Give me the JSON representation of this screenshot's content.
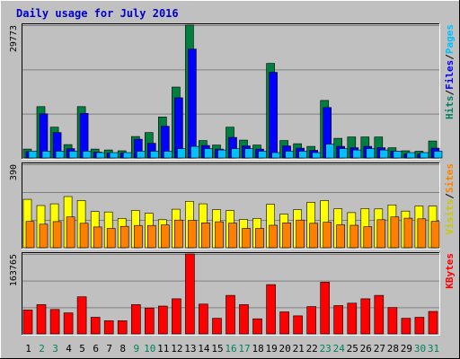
{
  "chart_data": {
    "type": "bar",
    "title": "Daily usage for July 2016",
    "categories": [
      "1",
      "2",
      "3",
      "4",
      "5",
      "6",
      "7",
      "8",
      "9",
      "10",
      "11",
      "12",
      "13",
      "14",
      "15",
      "16",
      "17",
      "18",
      "19",
      "20",
      "21",
      "22",
      "23",
      "24",
      "25",
      "26",
      "27",
      "28",
      "29",
      "30",
      "31"
    ],
    "weekend_days": [
      "2",
      "3",
      "9",
      "10",
      "16",
      "17",
      "23",
      "24",
      "30",
      "31"
    ],
    "colors": {
      "background": "#c0c0c0",
      "hits": "#008040",
      "files": "#0000ff",
      "pages": "#00c0ff",
      "visits": "#ffff00",
      "sites": "#ff8000",
      "kbytes": "#ff0000",
      "weekday_label": "#000000",
      "weekend_label": "#00805c",
      "title": "#0000c8"
    },
    "panels": [
      {
        "id": "hits_files_pages",
        "ymax_label": "29773",
        "ymax": 29773,
        "legend": [
          {
            "label": "Hits",
            "color": "#00805c"
          },
          {
            "label": "/",
            "color": "#000000"
          },
          {
            "label": "Files",
            "color": "#0000ff"
          },
          {
            "label": "/",
            "color": "#000000"
          },
          {
            "label": "Pages",
            "color": "#00c0ff"
          }
        ],
        "series": [
          {
            "name": "Hits",
            "color": "#008040",
            "values": [
              2000,
              11500,
              6900,
              3000,
              11500,
              2000,
              1800,
              1600,
              4800,
              5700,
              9200,
              15900,
              29773,
              3900,
              2900,
              6900,
              4000,
              2900,
              21200,
              3900,
              3200,
              2600,
              12900,
              4400,
              4700,
              4700,
              4700,
              2300,
              1600,
              1500,
              3800
            ]
          },
          {
            "name": "Files",
            "color": "#0000ff",
            "values": [
              1400,
              9900,
              5700,
              2100,
              10000,
              1300,
              1100,
              1100,
              4200,
              3300,
              7100,
              13500,
              24400,
              2800,
              2000,
              4600,
              2700,
              2000,
              19200,
              2700,
              2200,
              1700,
              11300,
              2600,
              2300,
              2600,
              2300,
              1500,
              900,
              900,
              2200
            ]
          },
          {
            "name": "Pages",
            "color": "#00c0ff",
            "values": [
              1500,
              1500,
              1500,
              1500,
              1500,
              1200,
              1200,
              1200,
              1500,
              1500,
              1500,
              2100,
              2600,
              2100,
              1800,
              2100,
              2100,
              1500,
              1200,
              1500,
              1500,
              1200,
              3100,
              2100,
              1800,
              2100,
              1800,
              1500,
              1200,
              1200,
              1500
            ]
          }
        ]
      },
      {
        "id": "visits_sites",
        "ymax_label": "390",
        "ymax": 390,
        "legend": [
          {
            "label": "Visits",
            "color": "#c8c800"
          },
          {
            "label": "/",
            "color": "#000000"
          },
          {
            "label": "Sites",
            "color": "#ff8000"
          }
        ],
        "series": [
          {
            "name": "Visits",
            "color": "#ffff00",
            "values": [
              226,
              197,
              205,
              239,
              221,
              169,
              167,
              137,
              174,
              161,
              131,
              180,
              217,
              205,
              178,
              173,
              132,
              137,
              203,
              157,
              178,
              212,
              220,
              182,
              164,
              183,
              181,
              200,
              171,
              195,
              194
            ]
          },
          {
            "name": "Sites",
            "color": "#ff8000",
            "values": [
              123,
              110,
              122,
              144,
              114,
              97,
              90,
              100,
              104,
              104,
              106,
              129,
              128,
              116,
              121,
              115,
              90,
              90,
              105,
              116,
              129,
              114,
              119,
              107,
              105,
              98,
              131,
              144,
              138,
              135,
              123
            ]
          }
        ]
      },
      {
        "id": "kbytes",
        "ymax_label": "163765",
        "ymax": 163765,
        "legend": [
          {
            "label": "KBytes",
            "color": "#ff0000"
          }
        ],
        "series": [
          {
            "name": "KBytes",
            "color": "#ff0000",
            "values": [
              49000,
              60000,
              50000,
              43000,
              76000,
              34000,
              27000,
              27000,
              60000,
              53000,
              57000,
              72000,
              163765,
              61000,
              32000,
              79000,
              60000,
              31000,
              101000,
              45000,
              37000,
              56000,
              106000,
              58000,
              63000,
              72000,
              79000,
              54000,
              32000,
              34000,
              46000
            ]
          }
        ]
      }
    ]
  }
}
